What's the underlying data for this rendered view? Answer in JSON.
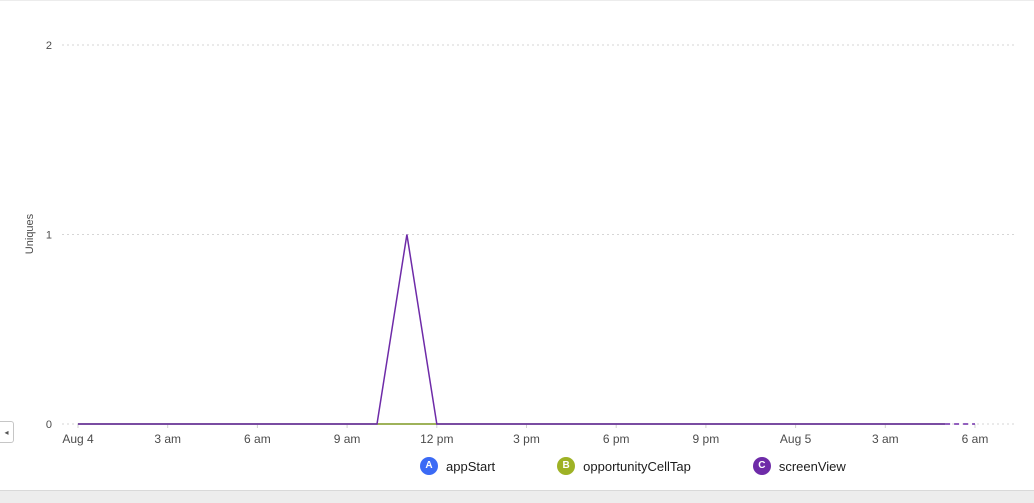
{
  "panel": {
    "collapse_icon": "◂"
  },
  "chart_data": {
    "type": "line",
    "title": "",
    "xlabel": "",
    "ylabel": "Uniques",
    "ylim": [
      0,
      2
    ],
    "yticks": [
      0,
      1,
      2
    ],
    "grid": "dotted-horizontal",
    "legend_position": "bottom",
    "x_range_hours": [
      0,
      30
    ],
    "xticks": [
      {
        "hour": 0,
        "label": "Aug 4"
      },
      {
        "hour": 3,
        "label": "3 am"
      },
      {
        "hour": 6,
        "label": "6 am"
      },
      {
        "hour": 9,
        "label": "9 am"
      },
      {
        "hour": 12,
        "label": "12 pm"
      },
      {
        "hour": 15,
        "label": "3 pm"
      },
      {
        "hour": 18,
        "label": "6 pm"
      },
      {
        "hour": 21,
        "label": "9 pm"
      },
      {
        "hour": 24,
        "label": "Aug 5"
      },
      {
        "hour": 27,
        "label": "3 am"
      },
      {
        "hour": 30,
        "label": "6 am"
      }
    ],
    "hours": [
      0,
      1,
      2,
      3,
      4,
      5,
      6,
      7,
      8,
      9,
      10,
      11,
      12,
      13,
      14,
      15,
      16,
      17,
      18,
      19,
      20,
      21,
      22,
      23,
      24,
      25,
      26,
      27,
      28,
      29
    ],
    "series": [
      {
        "id": "A",
        "name": "appStart",
        "color": "#3b6af5",
        "values": [
          0,
          0,
          0,
          0,
          0,
          0,
          0,
          0,
          0,
          0,
          0,
          0,
          0,
          0,
          0,
          0,
          0,
          0,
          0,
          0,
          0,
          0,
          0,
          0,
          0,
          0,
          0,
          0,
          0,
          0
        ]
      },
      {
        "id": "B",
        "name": "opportunityCellTap",
        "color": "#9eb225",
        "values": [
          0,
          0,
          0,
          0,
          0,
          0,
          0,
          0,
          0,
          0,
          0,
          0,
          0,
          0,
          0,
          0,
          0,
          0,
          0,
          0,
          0,
          0,
          0,
          0,
          0,
          0,
          0,
          0,
          0,
          0
        ]
      },
      {
        "id": "C",
        "name": "screenView",
        "color": "#6e2ba8",
        "values": [
          0,
          0,
          0,
          0,
          0,
          0,
          0,
          0,
          0,
          0,
          0,
          1,
          0,
          0,
          0,
          0,
          0,
          0,
          0,
          0,
          0,
          0,
          0,
          0,
          0,
          0,
          0,
          0,
          0,
          0
        ]
      }
    ],
    "dashed_tail": {
      "series": "screenView",
      "from_hour": 29,
      "to_hour": 30,
      "from_value": 0,
      "to_value": 0
    }
  }
}
